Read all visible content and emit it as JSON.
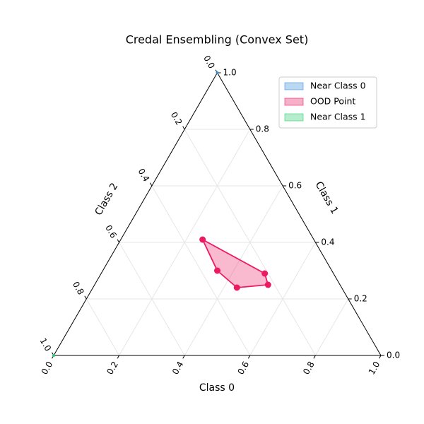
{
  "chart_data": {
    "type": "ternary",
    "title": "Credal Ensembling (Convex Set)",
    "axes": [
      {
        "label": "Class 0",
        "ticks": [
          {
            "value": 0,
            "label": "0.0"
          },
          0.2,
          0.4,
          0.6,
          0.8,
          {
            "value": 1,
            "label": "1.0"
          }
        ]
      },
      {
        "label": "Class 1",
        "ticks": [
          {
            "value": 0,
            "label": "0.0"
          },
          0.2,
          0.4,
          0.6,
          0.8,
          {
            "value": 1,
            "label": "1.0"
          }
        ]
      },
      {
        "label": "Class 2",
        "ticks": [
          {
            "value": 0,
            "label": "0.0"
          },
          0.2,
          0.4,
          0.6,
          0.8,
          {
            "value": 1,
            "label": "1.0"
          }
        ]
      }
    ],
    "grid": true,
    "legend": "upper right",
    "series": [
      {
        "name": "Near Class 0",
        "color": "#3a8fd9",
        "class_0": [
          0
        ],
        "class_1": [
          1
        ],
        "class_2": [
          0
        ]
      },
      {
        "name": "OOD Point",
        "color": "#ec1a63",
        "class_0": [
          0.25,
          0.5,
          0.53,
          0.44,
          0.35
        ],
        "class_1": [
          0.41,
          0.29,
          0.25,
          0.24,
          0.3
        ],
        "class_2": [
          0.34,
          0.21,
          0.22,
          0.32,
          0.35
        ]
      },
      {
        "name": "Near Class 1",
        "color": "#2ecc71",
        "class_0": [
          0
        ],
        "class_1": [
          0
        ],
        "class_2": [
          1
        ]
      }
    ]
  }
}
